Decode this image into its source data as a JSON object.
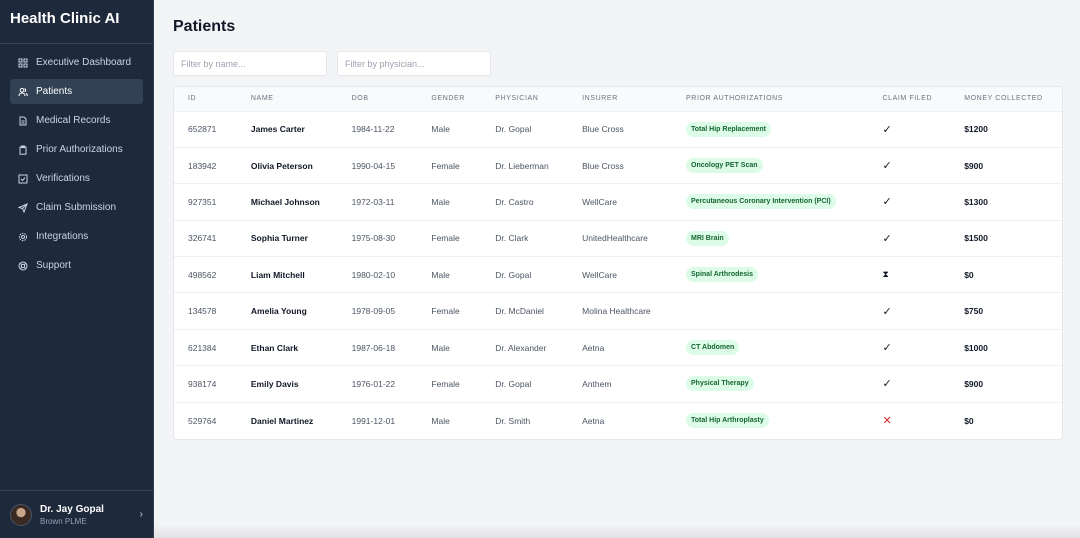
{
  "app": {
    "title": "Health Clinic AI"
  },
  "sidebar": {
    "items": [
      {
        "label": "Executive Dashboard",
        "icon": "dashboard-icon",
        "active": false
      },
      {
        "label": "Patients",
        "icon": "users-icon",
        "active": true
      },
      {
        "label": "Medical Records",
        "icon": "file-icon",
        "active": false
      },
      {
        "label": "Prior Authorizations",
        "icon": "clipboard-icon",
        "active": false
      },
      {
        "label": "Verifications",
        "icon": "check-square-icon",
        "active": false
      },
      {
        "label": "Claim Submission",
        "icon": "send-icon",
        "active": false
      },
      {
        "label": "Integrations",
        "icon": "gear-icon",
        "active": false
      },
      {
        "label": "Support",
        "icon": "lifebuoy-icon",
        "active": false
      }
    ]
  },
  "user": {
    "name": "Dr. Jay Gopal",
    "org": "Brown PLME"
  },
  "main": {
    "title": "Patients",
    "filters": {
      "name_placeholder": "Filter by name...",
      "physician_placeholder": "Filter by physician..."
    },
    "table": {
      "columns": [
        "ID",
        "NAME",
        "DOB",
        "GENDER",
        "PHYSICIAN",
        "INSURER",
        "PRIOR AUTHORIZATIONS",
        "CLAIM FILED",
        "MONEY COLLECTED"
      ],
      "rows": [
        {
          "id": "652871",
          "name": "James Carter",
          "dob": "1984-11-22",
          "gender": "Male",
          "physician": "Dr. Gopal",
          "insurer": "Blue Cross",
          "auth": "Total Hip Replacement",
          "claim": "filed",
          "money": "$1200"
        },
        {
          "id": "183942",
          "name": "Olivia Peterson",
          "dob": "1990-04-15",
          "gender": "Female",
          "physician": "Dr. Lieberman",
          "insurer": "Blue Cross",
          "auth": "Oncology PET Scan",
          "claim": "filed",
          "money": "$900"
        },
        {
          "id": "927351",
          "name": "Michael Johnson",
          "dob": "1972-03-11",
          "gender": "Male",
          "physician": "Dr. Castro",
          "insurer": "WellCare",
          "auth": "Percutaneous Coronary Intervention (PCI)",
          "claim": "filed",
          "money": "$1300"
        },
        {
          "id": "326741",
          "name": "Sophia Turner",
          "dob": "1975-08-30",
          "gender": "Female",
          "physician": "Dr. Clark",
          "insurer": "UnitedHealthcare",
          "auth": "MRI Brain",
          "claim": "filed",
          "money": "$1500"
        },
        {
          "id": "498562",
          "name": "Liam Mitchell",
          "dob": "1980-02-10",
          "gender": "Male",
          "physician": "Dr. Gopal",
          "insurer": "WellCare",
          "auth": "Spinal Arthrodesis",
          "claim": "pending",
          "money": "$0"
        },
        {
          "id": "134578",
          "name": "Amelia Young",
          "dob": "1978-09-05",
          "gender": "Female",
          "physician": "Dr. McDaniel",
          "insurer": "Molina Healthcare",
          "auth": "",
          "claim": "filed",
          "money": "$750"
        },
        {
          "id": "621384",
          "name": "Ethan Clark",
          "dob": "1987-06-18",
          "gender": "Male",
          "physician": "Dr. Alexander",
          "insurer": "Aetna",
          "auth": "CT Abdomen",
          "claim": "filed",
          "money": "$1000"
        },
        {
          "id": "938174",
          "name": "Emily Davis",
          "dob": "1976-01-22",
          "gender": "Female",
          "physician": "Dr. Gopal",
          "insurer": "Anthem",
          "auth": "Physical Therapy",
          "claim": "filed",
          "money": "$900"
        },
        {
          "id": "529764",
          "name": "Daniel Martinez",
          "dob": "1991-12-01",
          "gender": "Male",
          "physician": "Dr. Smith",
          "insurer": "Aetna",
          "auth": "Total Hip Arthroplasty",
          "claim": "denied",
          "money": "$0"
        }
      ]
    }
  },
  "status_icons": {
    "filed": "✓",
    "pending": "⧗",
    "denied": "✕"
  },
  "colors": {
    "sidebar_bg": "#1e293b",
    "badge_bg": "#dcfce7",
    "badge_text": "#166534",
    "denied": "#dc2626"
  }
}
